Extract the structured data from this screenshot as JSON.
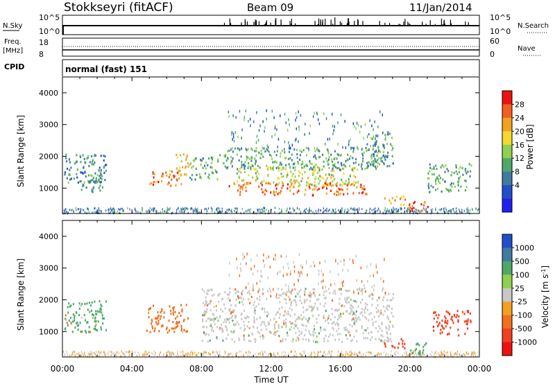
{
  "header": {
    "station": "Stokkseyri (fitACF)",
    "beam": "Beam 09",
    "date": "11/Jan/2014"
  },
  "summary": {
    "nsky": {
      "label": "N.Sky",
      "ticks": [
        "10^5",
        "10^0"
      ],
      "right_label": "N.Search",
      "right_ticks": [
        "10^5",
        "10^0"
      ]
    },
    "freq": {
      "label": "Freq.",
      "unit": "[MHz]",
      "ticks": [
        "18",
        "8"
      ],
      "right_label": "Nave",
      "right_ticks": [
        "60",
        "0"
      ]
    },
    "cpid": {
      "label": "CPID",
      "value": "normal (fast) 151"
    }
  },
  "chart_data": [
    {
      "type": "heatmap",
      "name": "power",
      "ylabel": "Slant Range [km]",
      "xlabel": "",
      "ylim": [
        200,
        4500
      ],
      "yticks": [
        "4000",
        "3000",
        "2000",
        "1000"
      ],
      "colorbar": {
        "label": "Power [dB]",
        "ticks": [
          "28",
          "24",
          "20",
          "16",
          "12",
          "8",
          "4"
        ],
        "colors": [
          "#ee1111",
          "#f06020",
          "#f4a020",
          "#f4d830",
          "#8fd050",
          "#4fa86a",
          "#3f7aa0",
          "#2050c8",
          "#2020ee"
        ]
      },
      "regions": [
        {
          "t": [
            0.05,
            2.5
          ],
          "r": [
            1200,
            2100
          ],
          "level": 9
        },
        {
          "t": [
            1.0,
            2.3
          ],
          "r": [
            900,
            1600
          ],
          "level": 10
        },
        {
          "t": [
            5.0,
            7.0
          ],
          "r": [
            1100,
            1600
          ],
          "level": 25
        },
        {
          "t": [
            6.5,
            7.3
          ],
          "r": [
            1400,
            2100
          ],
          "level": 20
        },
        {
          "t": [
            7.3,
            9.0
          ],
          "r": [
            1300,
            2000
          ],
          "level": 11
        },
        {
          "t": [
            9.5,
            17.5
          ],
          "r": [
            800,
            1200
          ],
          "level": 26
        },
        {
          "t": [
            10.0,
            17.0
          ],
          "r": [
            1100,
            1700
          ],
          "level": 17
        },
        {
          "t": [
            9.0,
            18.5
          ],
          "r": [
            1600,
            2300
          ],
          "level": 11
        },
        {
          "t": [
            17.5,
            19.0
          ],
          "r": [
            1700,
            2800
          ],
          "level": 10
        },
        {
          "t": [
            18.5,
            19.7
          ],
          "r": [
            500,
            800
          ],
          "level": 22
        },
        {
          "t": [
            19.8,
            21.0
          ],
          "r": [
            300,
            700
          ],
          "level": 27
        },
        {
          "t": [
            21.0,
            23.5
          ],
          "r": [
            900,
            1800
          ],
          "level": 12
        }
      ]
    },
    {
      "type": "heatmap",
      "name": "velocity",
      "ylabel": "Slant Range [km]",
      "xlabel": "Time UT",
      "ylim": [
        200,
        4500
      ],
      "yticks": [
        "4000",
        "3000",
        "2000",
        "1000"
      ],
      "xticks": [
        "00:00",
        "04:00",
        "08:00",
        "12:00",
        "16:00",
        "20:00",
        "00:00"
      ],
      "colorbar": {
        "label": "Velocity",
        "unit": "[m s",
        "unit_sup": "-1",
        "unit_end": "]",
        "ticks": [
          "1000",
          "500",
          "100",
          "25",
          "-25",
          "-100",
          "-500",
          "-1000"
        ],
        "colors": [
          "#2050c8",
          "#3f7aa0",
          "#4fa86a",
          "#8fd050",
          "#c8c8c8",
          "#f4a020",
          "#f07020",
          "#f04020",
          "#ee1111"
        ]
      },
      "regions": [
        {
          "t": [
            0.05,
            2.5
          ],
          "r": [
            1000,
            2000
          ],
          "level": 60
        },
        {
          "t": [
            4.8,
            7.2
          ],
          "r": [
            1000,
            1900
          ],
          "level": -120
        },
        {
          "t": [
            8.0,
            19.0
          ],
          "r": [
            700,
            2400
          ],
          "level": 0
        },
        {
          "t": [
            18.5,
            19.7
          ],
          "r": [
            500,
            800
          ],
          "level": -500
        },
        {
          "t": [
            19.8,
            21.0
          ],
          "r": [
            300,
            700
          ],
          "level": 150
        },
        {
          "t": [
            21.3,
            23.5
          ],
          "r": [
            900,
            1700
          ],
          "level": -600
        }
      ]
    }
  ]
}
